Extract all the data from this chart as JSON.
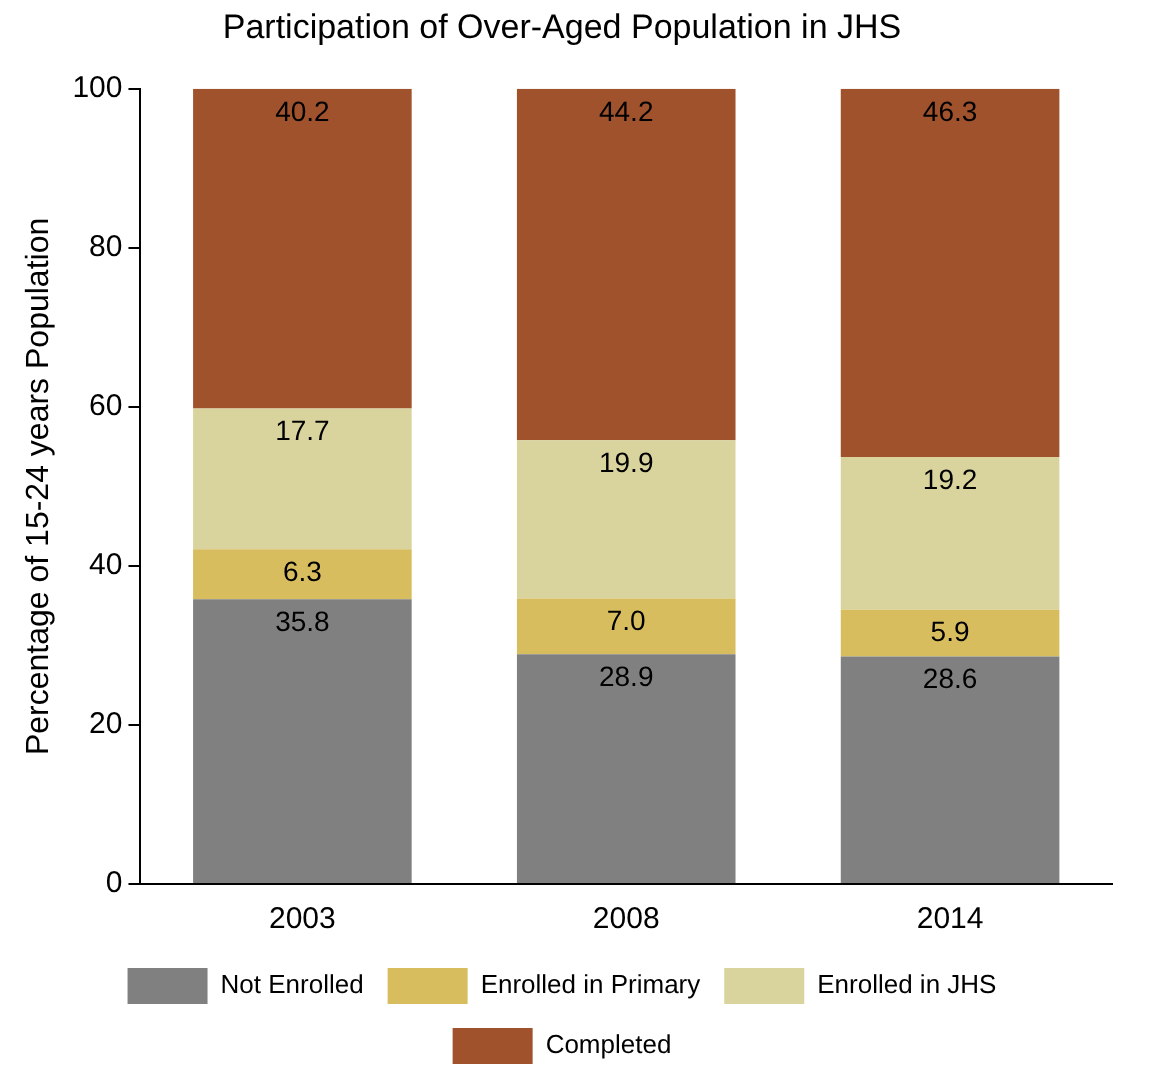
{
  "chart_data": {
    "type": "bar",
    "title": "Participation of Over-Aged Population in JHS",
    "ylabel": "Percentage of 15-24 years Population",
    "categories": [
      "2003",
      "2008",
      "2014"
    ],
    "stacked": true,
    "ylim": [
      0,
      100
    ],
    "yticks": [
      0,
      20,
      40,
      60,
      80,
      100
    ],
    "grid": false,
    "legend": "bottom",
    "series": [
      {
        "name": "Not Enrolled",
        "color": "#808080",
        "values": [
          35.8,
          28.9,
          28.6
        ],
        "value_labels": [
          "35.8",
          "28.9",
          "28.6"
        ]
      },
      {
        "name": "Enrolled in Primary",
        "color": "#d8bd5e",
        "values": [
          6.3,
          7.0,
          5.9
        ],
        "value_labels": [
          "6.3",
          "7.0",
          "5.9"
        ]
      },
      {
        "name": "Enrolled in JHS",
        "color": "#d9d49d",
        "values": [
          17.7,
          19.9,
          19.2
        ],
        "value_labels": [
          "17.7",
          "19.9",
          "19.2"
        ]
      },
      {
        "name": "Completed",
        "color": "#a0522d",
        "values": [
          40.2,
          44.2,
          46.3
        ],
        "value_labels": [
          "40.2",
          "44.2",
          "46.3"
        ]
      }
    ]
  }
}
